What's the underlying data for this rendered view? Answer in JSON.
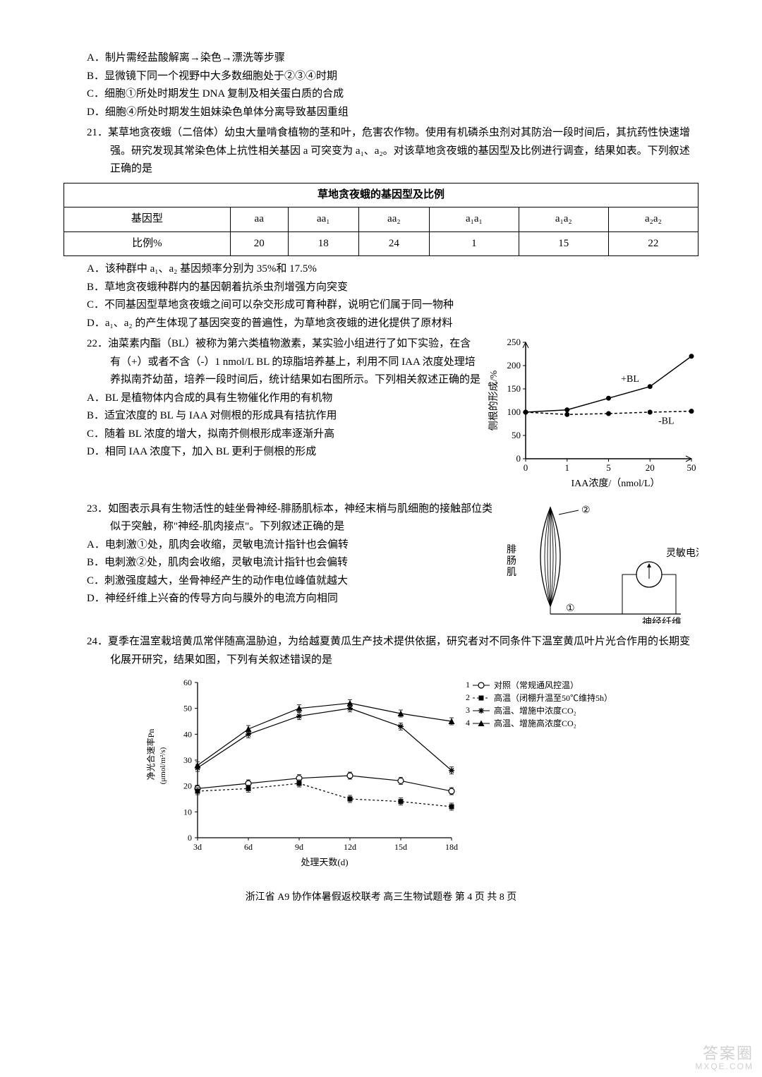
{
  "q20_options": {
    "A": "A．制片需经盐酸解离→染色→漂洗等步骤",
    "B": "B．显微镜下同一个视野中大多数细胞处于②③④时期",
    "C": "C．细胞①所处时期发生 DNA 复制及相关蛋白质的合成",
    "D": "D．细胞④所处时期发生姐妹染色单体分离导致基因重组"
  },
  "q21": {
    "num": "21．",
    "stem": "某草地贪夜蛾（二倍体）幼虫大量啃食植物的茎和叶，危害农作物。使用有机磷杀虫剂对其防治一段时间后，其抗药性快速增强。研究发现其常染色体上抗性相关基因 a 可突变为 a₁、a₂。对该草地贪夜蛾的基因型及比例进行调查，结果如表。下列叙述正确的是",
    "table_title": "草地贪夜蛾的基因型及比例",
    "table_headers": [
      "基因型",
      "aa",
      "aa₁",
      "aa₂",
      "a₁a₁",
      "a₁a₂",
      "a₂a₂"
    ],
    "row_label": "比例%",
    "row_vals": [
      "20",
      "18",
      "24",
      "1",
      "15",
      "22"
    ],
    "options": {
      "A": "A．该种群中 a₁、a₂ 基因频率分别为 35%和 17.5%",
      "B": "B．草地贪夜蛾种群内的基因朝着抗杀虫剂增强方向突变",
      "C": "C．不同基因型草地贪夜蛾之间可以杂交形成可育种群，说明它们属于同一物种",
      "D": "D．a₁、a₂ 的产生体现了基因突变的普遍性，为草地贪夜蛾的进化提供了原材料"
    }
  },
  "q22": {
    "num": "22．",
    "stem": "油菜素内酯（BL）被称为第六类植物激素，某实验小组进行了如下实验，在含有（+）或者不含（-）1 nmol/L BL 的琼脂培养基上，利用不同 IAA 浓度处理培养拟南芥幼苗，培养一段时间后，统计结果如右图所示。下列相关叙述正确的是",
    "options": {
      "A": "A．BL 是植物体内合成的具有生物催化作用的有机物",
      "B": "B．适宜浓度的 BL 与 IAA 对侧根的形成具有拮抗作用",
      "C": "C．随着 BL 浓度的增大，拟南芥侧根形成率逐渐升高",
      "D": "D．相同 IAA 浓度下，加入 BL 更利于侧根的形成"
    },
    "chart": {
      "type": "line",
      "x_ticks": [
        "0",
        "1",
        "5",
        "20",
        "50"
      ],
      "x_label": "IAA浓度/（nmol/L）",
      "y_ticks": [
        "0",
        "50",
        "100",
        "150",
        "200",
        "250"
      ],
      "y_label": "侧根的形成/%",
      "series_plus": {
        "label": "+BL",
        "color": "#000",
        "points": [
          [
            0,
            100
          ],
          [
            1,
            105
          ],
          [
            2,
            130
          ],
          [
            3,
            155
          ],
          [
            4,
            220
          ]
        ]
      },
      "series_minus": {
        "label": "-BL",
        "color": "#000",
        "dash": "4 3",
        "points": [
          [
            0,
            100
          ],
          [
            1,
            95
          ],
          [
            2,
            97
          ],
          [
            3,
            100
          ],
          [
            4,
            102
          ]
        ]
      }
    }
  },
  "q23": {
    "num": "23．",
    "stem": "如图表示具有生物活性的蛙坐骨神经-腓肠肌标本，神经末梢与肌细胞的接触部位类似于突触，称\"神经-肌肉接点\"。下列叙述正确的是",
    "options": {
      "A": "A．电刺激①处，肌肉会收缩，灵敏电流计指针也会偏转",
      "B": "B．电刺激②处，肌肉会收缩，灵敏电流计指针也会偏转",
      "C": "C．刺激强度越大，坐骨神经产生的动作电位峰值就越大",
      "D": "D．神经纤维上兴奋的传导方向与膜外的电流方向相同"
    },
    "labels": {
      "muscle": "腓肠肌",
      "meter": "灵敏电流计",
      "nerve": "神经纤维",
      "p1": "①",
      "p2": "②"
    }
  },
  "q24": {
    "num": "24．",
    "stem": "夏季在温室栽培黄瓜常伴随高温胁迫，为给越夏黄瓜生产技术提供依据，研究者对不同条件下温室黄瓜叶片光合作用的长期变化展开研究，结果如图，下列有关叙述错误的是",
    "chart": {
      "type": "line-multi",
      "x_ticks": [
        "3d",
        "6d",
        "9d",
        "12d",
        "15d",
        "18d"
      ],
      "x_label": "处理天数(d)",
      "y_ticks": [
        "0",
        "10",
        "20",
        "30",
        "40",
        "50",
        "60"
      ],
      "y_label": "净光合速率Pn\n(μmol/m²/s)",
      "legend": [
        {
          "key": "1",
          "marker": "○",
          "label": "对照（常规通风控温）"
        },
        {
          "key": "2",
          "marker": "■",
          "label": "高温（闭棚升温至50℃维持5h）"
        },
        {
          "key": "3",
          "marker": "✱",
          "label": "高温、增施中浓度CO₂"
        },
        {
          "key": "4",
          "marker": "▲",
          "label": "高温、增施高浓度CO₂"
        }
      ],
      "series": {
        "s1": {
          "color": "#000",
          "dash": "",
          "points": [
            [
              0,
              19
            ],
            [
              1,
              21
            ],
            [
              2,
              23
            ],
            [
              3,
              24
            ],
            [
              4,
              22
            ],
            [
              5,
              18
            ]
          ]
        },
        "s2": {
          "color": "#000",
          "dash": "2 2",
          "points": [
            [
              0,
              18
            ],
            [
              1,
              19
            ],
            [
              2,
              21
            ],
            [
              3,
              15
            ],
            [
              4,
              14
            ],
            [
              5,
              12
            ]
          ]
        },
        "s3": {
          "color": "#000",
          "dash": "",
          "points": [
            [
              0,
              27
            ],
            [
              1,
              40
            ],
            [
              2,
              47
            ],
            [
              3,
              50
            ],
            [
              4,
              43
            ],
            [
              5,
              26
            ]
          ]
        },
        "s4": {
          "color": "#000",
          "dash": "",
          "points": [
            [
              0,
              28
            ],
            [
              1,
              42
            ],
            [
              2,
              50
            ],
            [
              3,
              52
            ],
            [
              4,
              48
            ],
            [
              5,
              45
            ]
          ]
        }
      }
    }
  },
  "footer": "浙江省 A9 协作体暑假返校联考  高三生物试题卷  第 4 页 共 8 页",
  "watermark": {
    "l1": "答案圈",
    "l2": "MXQE.COM"
  }
}
